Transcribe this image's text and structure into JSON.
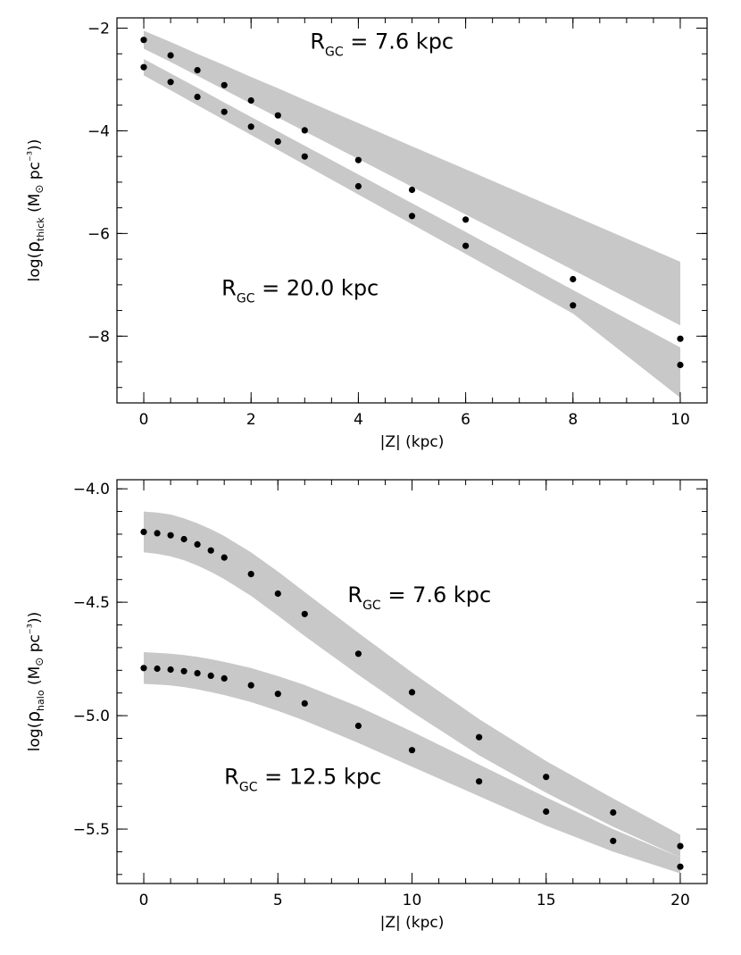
{
  "chart_data": [
    {
      "type": "scatter",
      "xlabel": "|Z| (kpc)",
      "ylabel": "log(ρthick (M⊙ pc⁻³))",
      "ylabel_parts": {
        "pre": "log(",
        "rho": "ρ",
        "sub": "thick",
        "mid": " (M",
        "sun": "⊙",
        "mid2": " pc",
        "exp": "⁻³",
        "post": "))"
      },
      "xlim": [
        -0.5,
        10.5
      ],
      "ylim": [
        -9.3,
        -1.8
      ],
      "xticks": [
        0,
        2,
        4,
        6,
        8,
        10
      ],
      "xtick_labels": [
        "0",
        "2",
        "4",
        "6",
        "8",
        "10"
      ],
      "yticks": [
        -8,
        -6,
        -4,
        -2
      ],
      "ytick_labels": [
        "−8",
        "−6",
        "−4",
        "−2"
      ],
      "x_minor_step": 0.5,
      "y_minor_step": 0.5,
      "annotations": [
        {
          "main": "R",
          "sub": "GC",
          "rest": " = 7.6 kpc",
          "x": 3.1,
          "y": -2.4
        },
        {
          "main": "R",
          "sub": "GC",
          "rest": " = 20.0 kpc",
          "x": 1.45,
          "y": -7.2
        }
      ],
      "series": [
        {
          "x": [
            0,
            0.5,
            1,
            1.5,
            2,
            2.5,
            3,
            4,
            5,
            6,
            8,
            10
          ],
          "values": [
            -2.23,
            -2.53,
            -2.82,
            -3.11,
            -3.41,
            -3.7,
            -3.99,
            -4.57,
            -5.15,
            -5.73,
            -6.89,
            -8.05
          ],
          "band_upper": [
            -2.05,
            -2.27,
            -2.5,
            -2.72,
            -2.95,
            -3.17,
            -3.4,
            -3.85,
            -4.3,
            -4.75,
            -5.65,
            -6.55
          ],
          "band_lower": [
            -2.4,
            -2.66,
            -2.93,
            -3.2,
            -3.47,
            -3.74,
            -4.01,
            -4.55,
            -5.09,
            -5.63,
            -6.71,
            -7.79
          ]
        },
        {
          "x": [
            0,
            0.5,
            1,
            1.5,
            2,
            2.5,
            3,
            4,
            5,
            6,
            8,
            10
          ],
          "values": [
            -2.76,
            -3.05,
            -3.34,
            -3.63,
            -3.92,
            -4.21,
            -4.5,
            -5.08,
            -5.66,
            -6.24,
            -7.4,
            -8.56
          ],
          "band_upper": [
            -2.6,
            -2.88,
            -3.16,
            -3.45,
            -3.73,
            -4.01,
            -4.29,
            -4.85,
            -5.41,
            -5.97,
            -7.1,
            -8.22
          ],
          "band_lower": [
            -2.92,
            -3.21,
            -3.5,
            -3.79,
            -4.08,
            -4.37,
            -4.66,
            -5.24,
            -5.82,
            -6.4,
            -7.56,
            -9.2
          ]
        }
      ],
      "band_color": "#c8c8c8",
      "point_color": "#000000"
    },
    {
      "type": "scatter",
      "xlabel": "|Z| (kpc)",
      "ylabel": "log(ρhalo (M⊙ pc⁻³))",
      "ylabel_parts": {
        "pre": "log(",
        "rho": "ρ",
        "sub": "halo",
        "mid": " (M",
        "sun": "⊙",
        "mid2": " pc",
        "exp": "⁻³",
        "post": "))"
      },
      "xlim": [
        -1,
        21
      ],
      "ylim": [
        -5.74,
        -3.96
      ],
      "xticks": [
        0,
        5,
        10,
        15,
        20
      ],
      "xtick_labels": [
        "0",
        "5",
        "10",
        "15",
        "20"
      ],
      "yticks": [
        -5.5,
        -5.0,
        -4.5,
        -4.0
      ],
      "ytick_labels": [
        "−5.5",
        "−5.0",
        "−4.5",
        "−4.0"
      ],
      "x_minor_step": 1,
      "y_minor_step": 0.1,
      "annotations": [
        {
          "main": "R",
          "sub": "GC",
          "rest": " = 7.6 kpc",
          "x": 7.6,
          "y": -4.5
        },
        {
          "main": "R",
          "sub": "GC",
          "rest": " = 12.5 kpc",
          "x": 3.0,
          "y": -5.3
        }
      ],
      "series": [
        {
          "x": [
            0,
            0.5,
            1,
            1.5,
            2,
            2.5,
            3,
            4,
            5,
            6,
            8,
            10,
            12.5,
            15,
            17.5,
            20
          ],
          "values": [
            -4.19,
            -4.196,
            -4.205,
            -4.222,
            -4.245,
            -4.272,
            -4.303,
            -4.376,
            -4.462,
            -4.552,
            -4.727,
            -4.897,
            -5.095,
            -5.27,
            -5.427,
            -5.575
          ],
          "band_upper": [
            -4.1,
            -4.105,
            -4.113,
            -4.13,
            -4.152,
            -4.178,
            -4.208,
            -4.28,
            -4.365,
            -4.455,
            -4.635,
            -4.81,
            -5.015,
            -5.2,
            -5.365,
            -5.525
          ],
          "band_lower": [
            -4.28,
            -4.287,
            -4.298,
            -4.315,
            -4.338,
            -4.366,
            -4.398,
            -4.472,
            -4.559,
            -4.649,
            -4.82,
            -4.984,
            -5.175,
            -5.34,
            -5.49,
            -5.625
          ]
        },
        {
          "x": [
            0,
            0.5,
            1,
            1.5,
            2,
            2.5,
            3,
            4,
            5,
            6,
            8,
            10,
            12.5,
            15,
            17.5,
            20
          ],
          "values": [
            -4.79,
            -4.793,
            -4.797,
            -4.804,
            -4.813,
            -4.824,
            -4.836,
            -4.866,
            -4.904,
            -4.946,
            -5.045,
            -5.152,
            -5.29,
            -5.423,
            -5.552,
            -5.666
          ],
          "band_upper": [
            -4.72,
            -4.723,
            -4.727,
            -4.733,
            -4.741,
            -4.751,
            -4.763,
            -4.79,
            -4.825,
            -4.865,
            -4.96,
            -5.07,
            -5.215,
            -5.36,
            -5.5,
            -5.625
          ],
          "band_lower": [
            -4.86,
            -4.863,
            -4.867,
            -4.874,
            -4.884,
            -4.896,
            -4.909,
            -4.94,
            -4.979,
            -5.022,
            -5.12,
            -5.225,
            -5.355,
            -5.485,
            -5.6,
            -5.695
          ]
        }
      ],
      "band_color": "#c8c8c8",
      "point_color": "#000000"
    }
  ]
}
